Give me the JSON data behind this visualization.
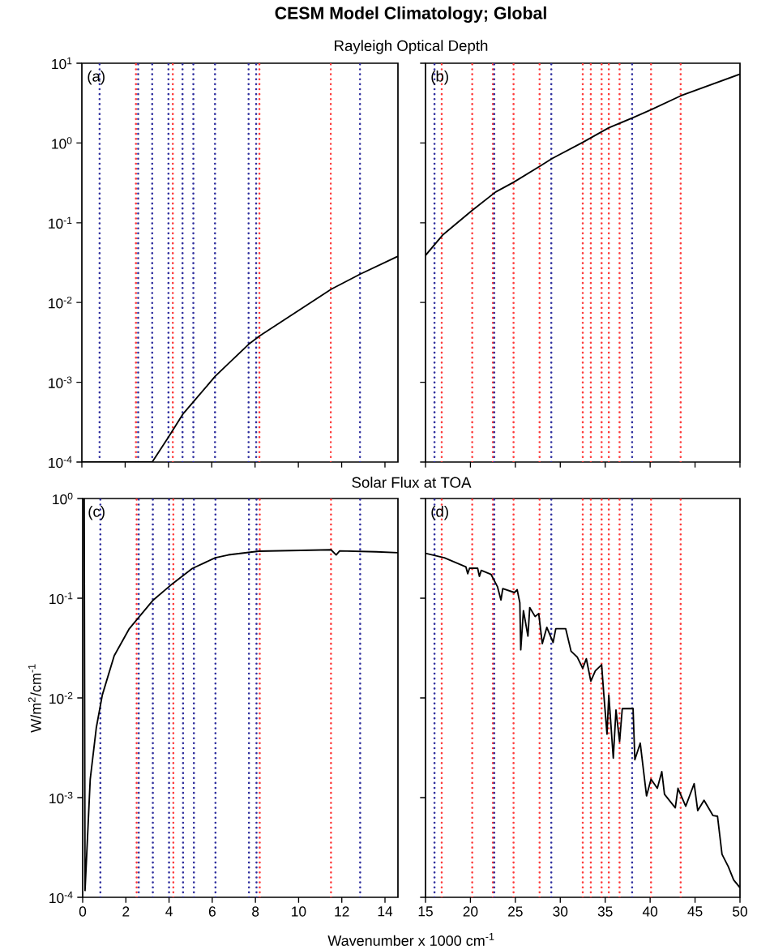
{
  "chart_data": [
    {
      "type": "line",
      "title": "CESM Model Climatology; Global",
      "subtitle": "Rayleigh Optical Depth",
      "annotations": [
        "(a)"
      ],
      "log": "y",
      "tick_labels": "y",
      "color": "#000000",
      "xlim": [
        0,
        14.6
      ],
      "ylim": [
        0.0001,
        10
      ],
      "xticks": [
        0,
        2,
        4,
        6,
        8,
        10,
        12,
        14
      ],
      "yticks": [
        {
          "value": 0.0001,
          "label": "10$^{-4}$"
        },
        {
          "value": 0.001,
          "label": "10$^{-3}$"
        },
        {
          "value": 0.01,
          "label": "10$^{-2}$"
        },
        {
          "value": 0.1,
          "label": "10$^{-1}$"
        },
        {
          "value": 1,
          "label": "10$^{0}$"
        },
        {
          "value": 10,
          "label": "10$^{1}$"
        }
      ],
      "x": [
        0,
        3.25,
        4.0,
        4.67,
        5.13,
        6.16,
        7.7,
        8.22,
        11.52,
        12.87,
        14.6
      ],
      "values": [
        0.0001,
        0.0001,
        0.000205,
        0.0004,
        0.00056,
        0.00119,
        0.00299,
        0.00383,
        0.0147,
        0.0228,
        0.038
      ],
      "ref_lines": [
        {
          "axis": "x",
          "value": 0.82,
          "color": "#2e2e9e",
          "line_style": "dotted"
        },
        {
          "axis": "x",
          "value": 2.5,
          "color": "#ff3b3b",
          "line_style": "dotted"
        },
        {
          "axis": "x",
          "value": 2.6,
          "color": "#2e2e9e",
          "line_style": "dotted"
        },
        {
          "axis": "x",
          "value": 3.25,
          "color": "#2e2e9e",
          "line_style": "dotted"
        },
        {
          "axis": "x",
          "value": 4.0,
          "color": "#2e2e9e",
          "line_style": "dotted"
        },
        {
          "axis": "x",
          "value": 4.2,
          "color": "#ff3b3b",
          "line_style": "dotted"
        },
        {
          "axis": "x",
          "value": 4.65,
          "color": "#2e2e9e",
          "line_style": "dotted"
        },
        {
          "axis": "x",
          "value": 5.15,
          "color": "#2e2e9e",
          "line_style": "dotted"
        },
        {
          "axis": "x",
          "value": 6.15,
          "color": "#2e2e9e",
          "line_style": "dotted"
        },
        {
          "axis": "x",
          "value": 7.7,
          "color": "#2e2e9e",
          "line_style": "dotted"
        },
        {
          "axis": "x",
          "value": 8.05,
          "color": "#2e2e9e",
          "line_style": "dotted"
        },
        {
          "axis": "x",
          "value": 8.2,
          "color": "#ff3b3b",
          "line_style": "dotted"
        },
        {
          "axis": "x",
          "value": 11.5,
          "color": "#ff3b3b",
          "line_style": "dotted"
        },
        {
          "axis": "x",
          "value": 12.85,
          "color": "#2e2e9e",
          "line_style": "dotted"
        }
      ]
    },
    {
      "type": "line",
      "annotations": [
        "(b)"
      ],
      "log": "y",
      "tick_labels": false,
      "color": "#000000",
      "xlim": [
        15,
        50
      ],
      "ylim": [
        0.0001,
        10
      ],
      "xticks": [
        15,
        20,
        25,
        30,
        35,
        40,
        45,
        50
      ],
      "yticks": [
        {
          "value": 0.0001,
          "label": null
        },
        {
          "value": 0.001,
          "label": null
        },
        {
          "value": 0.01,
          "label": null
        },
        {
          "value": 0.1,
          "label": null
        },
        {
          "value": 1,
          "label": null
        },
        {
          "value": 10,
          "label": null
        }
      ],
      "x": [
        15,
        16.9,
        20.2,
        22.8,
        24.8,
        27.7,
        29.1,
        32.5,
        35.4,
        38.1,
        40.1,
        43.4,
        50
      ],
      "values": [
        0.039,
        0.07,
        0.143,
        0.243,
        0.322,
        0.51,
        0.64,
        1.02,
        1.55,
        2.08,
        2.61,
        3.9,
        7.3
      ],
      "ref_lines": [
        {
          "axis": "x",
          "value": 16.0,
          "color": "#2e2e9e",
          "line_style": "dotted"
        },
        {
          "axis": "x",
          "value": 16.8,
          "color": "#ff3b3b",
          "line_style": "dotted"
        },
        {
          "axis": "x",
          "value": 20.2,
          "color": "#ff3b3b",
          "line_style": "dotted"
        },
        {
          "axis": "x",
          "value": 22.5,
          "color": "#ff3b3b",
          "line_style": "dotted"
        },
        {
          "axis": "x",
          "value": 22.65,
          "color": "#2e2e9e",
          "line_style": "dotted"
        },
        {
          "axis": "x",
          "value": 24.8,
          "color": "#ff3b3b",
          "line_style": "dotted"
        },
        {
          "axis": "x",
          "value": 27.7,
          "color": "#ff3b3b",
          "line_style": "dotted"
        },
        {
          "axis": "x",
          "value": 29.0,
          "color": "#2e2e9e",
          "line_style": "dotted"
        },
        {
          "axis": "x",
          "value": 32.5,
          "color": "#ff3b3b",
          "line_style": "dotted"
        },
        {
          "axis": "x",
          "value": 33.4,
          "color": "#ff3b3b",
          "line_style": "dotted"
        },
        {
          "axis": "x",
          "value": 34.6,
          "color": "#ff3b3b",
          "line_style": "dotted"
        },
        {
          "axis": "x",
          "value": 35.4,
          "color": "#ff3b3b",
          "line_style": "dotted"
        },
        {
          "axis": "x",
          "value": 36.6,
          "color": "#ff3b3b",
          "line_style": "dotted"
        },
        {
          "axis": "x",
          "value": 38.0,
          "color": "#2e2e9e",
          "line_style": "dotted"
        },
        {
          "axis": "x",
          "value": 40.1,
          "color": "#ff3b3b",
          "line_style": "dotted"
        },
        {
          "axis": "x",
          "value": 43.4,
          "color": "#ff3b3b",
          "line_style": "dotted"
        }
      ]
    },
    {
      "type": "line",
      "subtitle": "Solar Flux at TOA",
      "xlabel": "Wavenumber x 1000 cm$^{-1}$",
      "ylabel": "W/m$^{2}$/cm$^{-1}$",
      "annotations": [
        "(c)"
      ],
      "log": "y",
      "color": "#000000",
      "xlim": [
        0,
        14.6
      ],
      "ylim": [
        0.0001,
        1
      ],
      "xticks": [
        0,
        2,
        4,
        6,
        8,
        10,
        12,
        14
      ],
      "yticks": [
        {
          "value": 0.0001,
          "label": "10$^{-4}$"
        },
        {
          "value": 0.001,
          "label": "10$^{-3}$"
        },
        {
          "value": 0.01,
          "label": "10$^{-2}$"
        },
        {
          "value": 0.1,
          "label": "10$^{-1}$"
        },
        {
          "value": 1,
          "label": "10$^{0}$"
        }
      ],
      "x": [
        0.07,
        0.11,
        0.35,
        0.63,
        0.91,
        1.46,
        2.16,
        2.51,
        3.27,
        4.18,
        5.08,
        6.14,
        6.75,
        8.15,
        10.1,
        11.5,
        11.74,
        11.9,
        13.6,
        14.6
      ],
      "values": [
        1,
        0.000117,
        0.00153,
        0.005,
        0.0107,
        0.0265,
        0.0495,
        0.061,
        0.096,
        0.141,
        0.199,
        0.254,
        0.272,
        0.296,
        0.302,
        0.306,
        0.272,
        0.298,
        0.292,
        0.286
      ],
      "ref_lines": [
        {
          "axis": "x",
          "value": 0.82,
          "color": "#2e2e9e",
          "line_style": "dotted"
        },
        {
          "axis": "x",
          "value": 2.5,
          "color": "#ff3b3b",
          "line_style": "dotted"
        },
        {
          "axis": "x",
          "value": 2.6,
          "color": "#2e2e9e",
          "line_style": "dotted"
        },
        {
          "axis": "x",
          "value": 3.25,
          "color": "#2e2e9e",
          "line_style": "dotted"
        },
        {
          "axis": "x",
          "value": 4.0,
          "color": "#2e2e9e",
          "line_style": "dotted"
        },
        {
          "axis": "x",
          "value": 4.2,
          "color": "#ff3b3b",
          "line_style": "dotted"
        },
        {
          "axis": "x",
          "value": 4.65,
          "color": "#2e2e9e",
          "line_style": "dotted"
        },
        {
          "axis": "x",
          "value": 5.15,
          "color": "#2e2e9e",
          "line_style": "dotted"
        },
        {
          "axis": "x",
          "value": 6.15,
          "color": "#2e2e9e",
          "line_style": "dotted"
        },
        {
          "axis": "x",
          "value": 7.7,
          "color": "#2e2e9e",
          "line_style": "dotted"
        },
        {
          "axis": "x",
          "value": 8.05,
          "color": "#2e2e9e",
          "line_style": "dotted"
        },
        {
          "axis": "x",
          "value": 8.2,
          "color": "#ff3b3b",
          "line_style": "dotted"
        },
        {
          "axis": "x",
          "value": 11.5,
          "color": "#ff3b3b",
          "line_style": "dotted"
        },
        {
          "axis": "x",
          "value": 12.85,
          "color": "#2e2e9e",
          "line_style": "dotted"
        }
      ]
    },
    {
      "type": "line",
      "annotations": [
        "(d)"
      ],
      "log": "y",
      "tick_labels": "x",
      "color": "#000000",
      "xlim": [
        15,
        50
      ],
      "ylim": [
        0.0001,
        1
      ],
      "xticks": [
        15,
        20,
        25,
        30,
        35,
        40,
        45,
        50
      ],
      "yticks": [
        {
          "value": 0.0001,
          "label": null
        },
        {
          "value": 0.001,
          "label": null
        },
        {
          "value": 0.01,
          "label": null
        },
        {
          "value": 0.1,
          "label": null
        },
        {
          "value": 1,
          "label": null
        }
      ],
      "x": [
        15,
        17.1,
        19.5,
        19.7,
        19.9,
        20.8,
        21.0,
        21.2,
        22.3,
        23.0,
        23.4,
        23.6,
        24.9,
        25.2,
        25.5,
        25.6,
        25.9,
        26.4,
        26.6,
        27.2,
        27.6,
        28.0,
        28.5,
        29.2,
        29.5,
        30.6,
        31.2,
        31.9,
        32.5,
        32.9,
        33.4,
        33.9,
        34.6,
        34.85,
        35.2,
        35.4,
        35.9,
        36.2,
        36.6,
        36.9,
        38.1,
        38.3,
        38.9,
        39.6,
        40.1,
        40.8,
        41.3,
        41.6,
        42.8,
        43.1,
        43.96,
        44.9,
        45.3,
        46.0,
        47.0,
        47.5,
        48.0,
        48.7,
        49.3,
        50
      ],
      "values": [
        0.282,
        0.254,
        0.206,
        0.176,
        0.2,
        0.2,
        0.166,
        0.19,
        0.173,
        0.131,
        0.096,
        0.125,
        0.114,
        0.122,
        0.09,
        0.0304,
        0.075,
        0.0417,
        0.0805,
        0.0655,
        0.07,
        0.035,
        0.051,
        0.036,
        0.0495,
        0.0495,
        0.0294,
        0.0256,
        0.0198,
        0.0247,
        0.0147,
        0.0187,
        0.0215,
        0.0107,
        0.00434,
        0.0107,
        0.00249,
        0.00757,
        0.00365,
        0.0078,
        0.00784,
        0.0024,
        0.00352,
        0.00104,
        0.00153,
        0.00124,
        0.00182,
        0.00108,
        0.00079,
        0.00124,
        0.00082,
        0.00138,
        0.00074,
        0.00094,
        0.00066,
        0.00065,
        0.00027,
        0.000203,
        0.000149,
        0.000125
      ],
      "ref_lines": [
        {
          "axis": "x",
          "value": 16.0,
          "color": "#2e2e9e",
          "line_style": "dotted"
        },
        {
          "axis": "x",
          "value": 16.8,
          "color": "#ff3b3b",
          "line_style": "dotted"
        },
        {
          "axis": "x",
          "value": 20.2,
          "color": "#ff3b3b",
          "line_style": "dotted"
        },
        {
          "axis": "x",
          "value": 22.5,
          "color": "#ff3b3b",
          "line_style": "dotted"
        },
        {
          "axis": "x",
          "value": 22.65,
          "color": "#2e2e9e",
          "line_style": "dotted"
        },
        {
          "axis": "x",
          "value": 24.8,
          "color": "#ff3b3b",
          "line_style": "dotted"
        },
        {
          "axis": "x",
          "value": 27.7,
          "color": "#ff3b3b",
          "line_style": "dotted"
        },
        {
          "axis": "x",
          "value": 29.0,
          "color": "#2e2e9e",
          "line_style": "dotted"
        },
        {
          "axis": "x",
          "value": 32.5,
          "color": "#ff3b3b",
          "line_style": "dotted"
        },
        {
          "axis": "x",
          "value": 33.4,
          "color": "#ff3b3b",
          "line_style": "dotted"
        },
        {
          "axis": "x",
          "value": 34.6,
          "color": "#ff3b3b",
          "line_style": "dotted"
        },
        {
          "axis": "x",
          "value": 35.4,
          "color": "#ff3b3b",
          "line_style": "dotted"
        },
        {
          "axis": "x",
          "value": 36.6,
          "color": "#ff3b3b",
          "line_style": "dotted"
        },
        {
          "axis": "x",
          "value": 38.0,
          "color": "#2e2e9e",
          "line_style": "dotted"
        },
        {
          "axis": "x",
          "value": 40.1,
          "color": "#ff3b3b",
          "line_style": "dotted"
        },
        {
          "axis": "x",
          "value": 43.4,
          "color": "#ff3b3b",
          "line_style": "dotted"
        }
      ]
    }
  ]
}
